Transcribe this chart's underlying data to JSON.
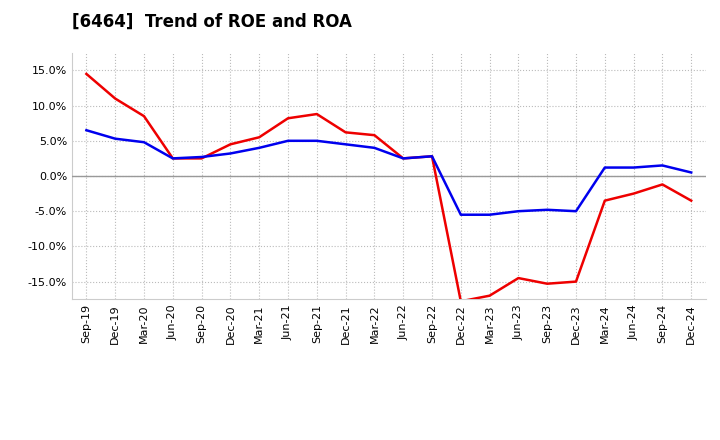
{
  "title": "[6464]  Trend of ROE and ROA",
  "x_labels": [
    "Sep-19",
    "Dec-19",
    "Mar-20",
    "Jun-20",
    "Sep-20",
    "Dec-20",
    "Mar-21",
    "Jun-21",
    "Sep-21",
    "Dec-21",
    "Mar-22",
    "Jun-22",
    "Sep-22",
    "Dec-22",
    "Mar-23",
    "Jun-23",
    "Sep-23",
    "Dec-23",
    "Mar-24",
    "Jun-24",
    "Sep-24",
    "Dec-24"
  ],
  "roe": [
    14.5,
    11.0,
    8.5,
    2.5,
    2.5,
    4.5,
    5.5,
    8.2,
    8.8,
    6.2,
    5.8,
    2.5,
    2.8,
    -17.8,
    -17.0,
    -14.5,
    -15.3,
    -15.0,
    -3.5,
    -2.5,
    -1.2,
    -3.5
  ],
  "roa": [
    6.5,
    5.3,
    4.8,
    2.5,
    2.7,
    3.2,
    4.0,
    5.0,
    5.0,
    4.5,
    4.0,
    2.5,
    2.8,
    -5.5,
    -5.5,
    -5.0,
    -4.8,
    -5.0,
    1.2,
    1.2,
    1.5,
    0.5
  ],
  "roe_color": "#ee0000",
  "roa_color": "#0000ee",
  "bg_color": "#ffffff",
  "plot_bg_color": "#ffffff",
  "grid_color": "#bbbbbb",
  "ylim": [
    -17.5,
    17.5
  ],
  "yticks": [
    -15.0,
    -10.0,
    -5.0,
    0.0,
    5.0,
    10.0,
    15.0
  ],
  "title_fontsize": 12,
  "legend_fontsize": 10,
  "tick_fontsize": 8,
  "line_width": 1.8,
  "zero_line_color": "#999999"
}
